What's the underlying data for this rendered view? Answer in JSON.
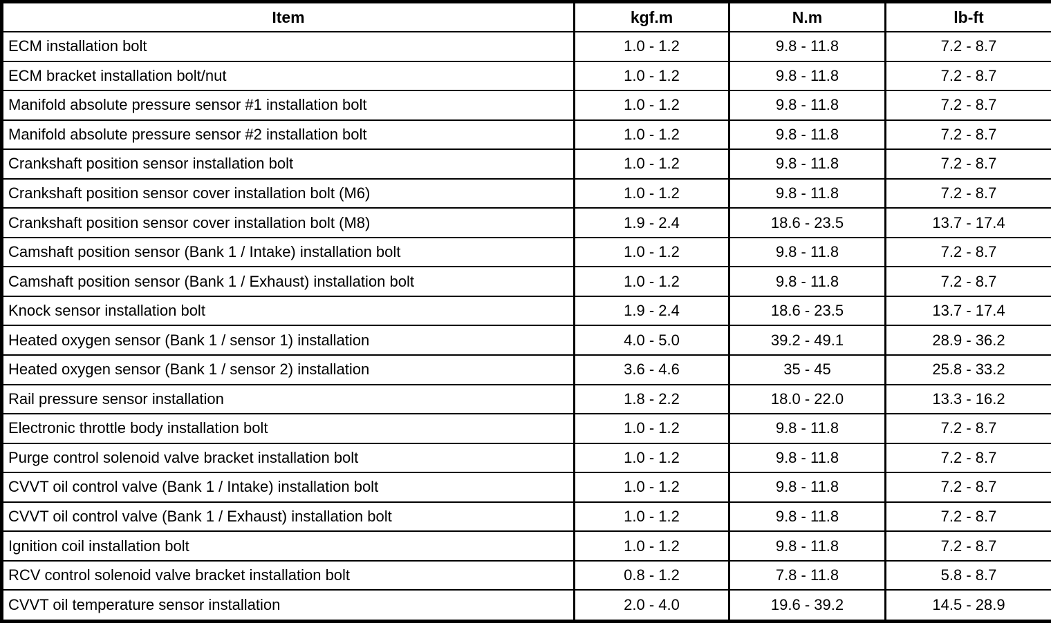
{
  "colors": {
    "background": "#ffffff",
    "border": "#000000",
    "text": "#000000"
  },
  "table": {
    "columns": [
      "Item",
      "kgf.m",
      "N.m",
      "lb-ft"
    ],
    "rows": [
      {
        "item": "ECM installation bolt",
        "kgf_m": "1.0 - 1.2",
        "n_m": "9.8 - 11.8",
        "lb_ft": "7.2 - 8.7"
      },
      {
        "item": "ECM bracket installation bolt/nut",
        "kgf_m": "1.0 - 1.2",
        "n_m": "9.8 - 11.8",
        "lb_ft": "7.2 - 8.7"
      },
      {
        "item": "Manifold absolute pressure sensor #1 installation bolt",
        "kgf_m": "1.0 - 1.2",
        "n_m": "9.8 - 11.8",
        "lb_ft": "7.2 - 8.7"
      },
      {
        "item": "Manifold absolute pressure sensor #2 installation bolt",
        "kgf_m": "1.0 - 1.2",
        "n_m": "9.8 - 11.8",
        "lb_ft": "7.2 - 8.7"
      },
      {
        "item": "Crankshaft position sensor installation bolt",
        "kgf_m": "1.0 - 1.2",
        "n_m": "9.8 - 11.8",
        "lb_ft": "7.2 - 8.7"
      },
      {
        "item": "Crankshaft position sensor cover installation bolt (M6)",
        "kgf_m": "1.0 - 1.2",
        "n_m": "9.8 - 11.8",
        "lb_ft": "7.2 - 8.7"
      },
      {
        "item": "Crankshaft position sensor cover installation bolt (M8)",
        "kgf_m": "1.9 - 2.4",
        "n_m": "18.6 - 23.5",
        "lb_ft": "13.7 - 17.4"
      },
      {
        "item": "Camshaft position sensor (Bank 1 / Intake) installation bolt",
        "kgf_m": "1.0 - 1.2",
        "n_m": "9.8 - 11.8",
        "lb_ft": "7.2 - 8.7"
      },
      {
        "item": "Camshaft position sensor (Bank 1 / Exhaust) installation bolt",
        "kgf_m": "1.0 - 1.2",
        "n_m": "9.8 - 11.8",
        "lb_ft": "7.2 - 8.7"
      },
      {
        "item": "Knock sensor installation bolt",
        "kgf_m": "1.9 - 2.4",
        "n_m": "18.6 - 23.5",
        "lb_ft": "13.7 - 17.4"
      },
      {
        "item": "Heated oxygen sensor (Bank 1 / sensor 1) installation",
        "kgf_m": "4.0 - 5.0",
        "n_m": "39.2 - 49.1",
        "lb_ft": "28.9 - 36.2"
      },
      {
        "item": "Heated oxygen sensor (Bank 1 / sensor 2) installation",
        "kgf_m": "3.6 - 4.6",
        "n_m": "35 - 45",
        "lb_ft": "25.8 - 33.2"
      },
      {
        "item": "Rail pressure sensor installation",
        "kgf_m": "1.8 - 2.2",
        "n_m": "18.0 - 22.0",
        "lb_ft": "13.3 - 16.2"
      },
      {
        "item": "Electronic throttle body installation bolt",
        "kgf_m": "1.0 - 1.2",
        "n_m": "9.8 - 11.8",
        "lb_ft": "7.2 - 8.7"
      },
      {
        "item": "Purge control solenoid valve bracket installation bolt",
        "kgf_m": "1.0 - 1.2",
        "n_m": "9.8 - 11.8",
        "lb_ft": "7.2 - 8.7"
      },
      {
        "item": "CVVT oil control valve (Bank 1 / Intake) installation bolt",
        "kgf_m": "1.0 - 1.2",
        "n_m": "9.8 - 11.8",
        "lb_ft": "7.2 - 8.7"
      },
      {
        "item": "CVVT oil control valve (Bank 1 / Exhaust) installation bolt",
        "kgf_m": "1.0 - 1.2",
        "n_m": "9.8 - 11.8",
        "lb_ft": "7.2 - 8.7"
      },
      {
        "item": "Ignition coil installation bolt",
        "kgf_m": "1.0 - 1.2",
        "n_m": "9.8 - 11.8",
        "lb_ft": "7.2 - 8.7"
      },
      {
        "item": "RCV control solenoid valve bracket installation bolt",
        "kgf_m": "0.8 - 1.2",
        "n_m": "7.8 - 11.8",
        "lb_ft": "5.8 - 8.7"
      },
      {
        "item": "CVVT oil temperature sensor installation",
        "kgf_m": "2.0 - 4.0",
        "n_m": "19.6 - 39.2",
        "lb_ft": "14.5 - 28.9"
      }
    ]
  }
}
